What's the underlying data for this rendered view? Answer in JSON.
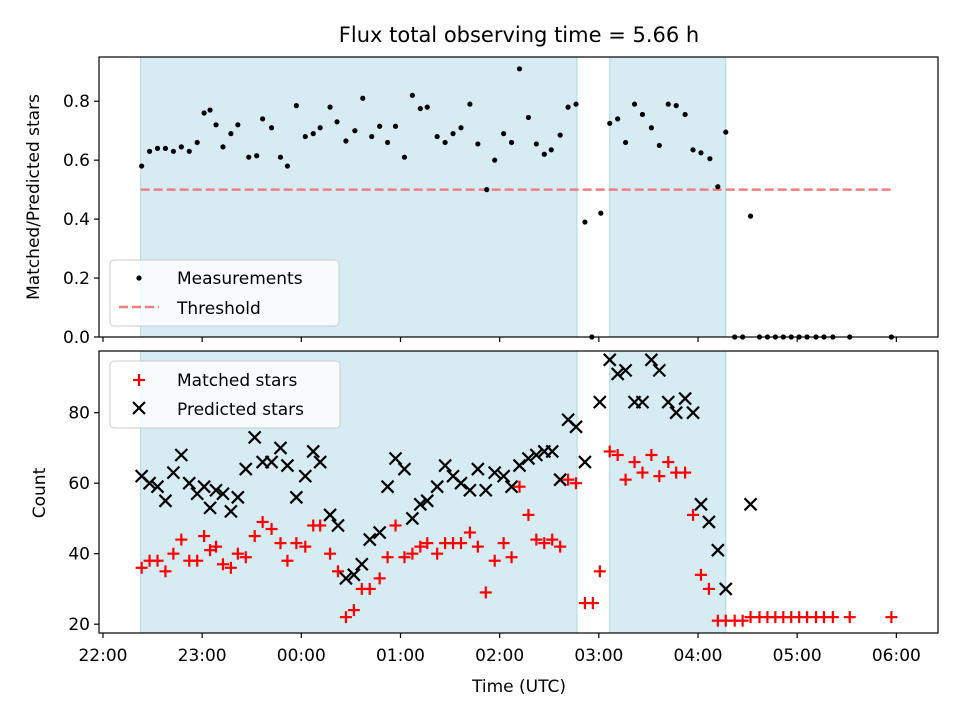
{
  "chart_data": {
    "title": "Flux total observing time = 5.66 h",
    "xlabel": "Time (UTC)",
    "x_unit": "hours since 22:00 UTC",
    "xlim": [
      -0.04,
      8.42
    ],
    "xticks": [
      {
        "x": 0,
        "label": "22:00"
      },
      {
        "x": 1,
        "label": "23:00"
      },
      {
        "x": 2,
        "label": "00:00"
      },
      {
        "x": 3,
        "label": "01:00"
      },
      {
        "x": 4,
        "label": "02:00"
      },
      {
        "x": 5,
        "label": "03:00"
      },
      {
        "x": 6,
        "label": "04:00"
      },
      {
        "x": 7,
        "label": "05:00"
      },
      {
        "x": 8,
        "label": "06:00"
      }
    ],
    "shaded_spans": [
      {
        "x0": 0.38,
        "x1": 4.78,
        "color": "#add8e6"
      },
      {
        "x0": 5.11,
        "x1": 6.28,
        "color": "#add8e6"
      }
    ],
    "top": {
      "type": "scatter",
      "ylabel": "Matched/Predicted stars",
      "ylim": [
        0,
        0.95
      ],
      "yticks": [
        0.0,
        0.2,
        0.4,
        0.6,
        0.8
      ],
      "threshold": {
        "name": "Threshold",
        "y": 0.5,
        "x0": 0.38,
        "x1": 7.95,
        "color": "#f08080"
      },
      "legend": {
        "position": "lower-left",
        "entries": [
          "Measurements",
          "Threshold"
        ]
      },
      "series": [
        {
          "name": "Measurements",
          "color": "#000000",
          "points": [
            [
              0.39,
              0.58
            ],
            [
              0.47,
              0.63
            ],
            [
              0.55,
              0.64
            ],
            [
              0.63,
              0.64
            ],
            [
              0.71,
              0.63
            ],
            [
              0.79,
              0.645
            ],
            [
              0.87,
              0.63
            ],
            [
              0.95,
              0.66
            ],
            [
              1.02,
              0.76
            ],
            [
              1.08,
              0.77
            ],
            [
              1.14,
              0.72
            ],
            [
              1.21,
              0.645
            ],
            [
              1.29,
              0.69
            ],
            [
              1.36,
              0.72
            ],
            [
              1.47,
              0.61
            ],
            [
              1.55,
              0.615
            ],
            [
              1.61,
              0.74
            ],
            [
              1.7,
              0.71
            ],
            [
              1.79,
              0.61
            ],
            [
              1.86,
              0.58
            ],
            [
              1.95,
              0.785
            ],
            [
              2.04,
              0.68
            ],
            [
              2.12,
              0.69
            ],
            [
              2.19,
              0.71
            ],
            [
              2.29,
              0.78
            ],
            [
              2.36,
              0.73
            ],
            [
              2.45,
              0.665
            ],
            [
              2.54,
              0.7
            ],
            [
              2.62,
              0.81
            ],
            [
              2.71,
              0.68
            ],
            [
              2.79,
              0.715
            ],
            [
              2.87,
              0.66
            ],
            [
              2.95,
              0.715
            ],
            [
              3.04,
              0.61
            ],
            [
              3.12,
              0.82
            ],
            [
              3.2,
              0.775
            ],
            [
              3.27,
              0.78
            ],
            [
              3.37,
              0.68
            ],
            [
              3.45,
              0.66
            ],
            [
              3.53,
              0.69
            ],
            [
              3.61,
              0.71
            ],
            [
              3.7,
              0.79
            ],
            [
              3.78,
              0.655
            ],
            [
              3.87,
              0.5
            ],
            [
              3.95,
              0.6
            ],
            [
              4.04,
              0.69
            ],
            [
              4.12,
              0.66
            ],
            [
              4.2,
              0.91
            ],
            [
              4.29,
              0.745
            ],
            [
              4.37,
              0.655
            ],
            [
              4.45,
              0.62
            ],
            [
              4.52,
              0.635
            ],
            [
              4.61,
              0.685
            ],
            [
              4.69,
              0.78
            ],
            [
              4.77,
              0.79
            ],
            [
              4.86,
              0.39
            ],
            [
              4.93,
              0.0
            ],
            [
              5.02,
              0.42
            ],
            [
              5.11,
              0.725
            ],
            [
              5.19,
              0.74
            ],
            [
              5.27,
              0.66
            ],
            [
              5.36,
              0.79
            ],
            [
              5.44,
              0.755
            ],
            [
              5.53,
              0.71
            ],
            [
              5.61,
              0.65
            ],
            [
              5.7,
              0.79
            ],
            [
              5.78,
              0.785
            ],
            [
              5.87,
              0.755
            ],
            [
              5.95,
              0.635
            ],
            [
              6.03,
              0.625
            ],
            [
              6.12,
              0.605
            ],
            [
              6.2,
              0.51
            ],
            [
              6.28,
              0.695
            ],
            [
              6.37,
              0.0
            ],
            [
              6.45,
              0.0
            ],
            [
              6.53,
              0.41
            ],
            [
              6.62,
              0.0
            ],
            [
              6.7,
              0.0
            ],
            [
              6.78,
              0.0
            ],
            [
              6.86,
              0.0
            ],
            [
              6.94,
              0.0
            ],
            [
              7.02,
              0.0
            ],
            [
              7.1,
              0.0
            ],
            [
              7.19,
              0.0
            ],
            [
              7.27,
              0.0
            ],
            [
              7.36,
              0.0
            ],
            [
              7.53,
              0.0
            ],
            [
              7.95,
              0.0
            ]
          ]
        }
      ]
    },
    "bottom": {
      "type": "scatter",
      "ylabel": "Count",
      "ylim": [
        17.5,
        97.5
      ],
      "yticks": [
        20,
        40,
        60,
        80
      ],
      "legend": {
        "position": "upper-left",
        "entries": [
          "Matched stars",
          "Predicted stars"
        ]
      },
      "series": [
        {
          "name": "Matched stars",
          "marker": "plus",
          "color": "#ff0000",
          "points": [
            [
              0.39,
              36
            ],
            [
              0.47,
              38
            ],
            [
              0.55,
              38
            ],
            [
              0.63,
              35
            ],
            [
              0.71,
              40
            ],
            [
              0.79,
              44
            ],
            [
              0.87,
              38
            ],
            [
              0.95,
              38
            ],
            [
              1.02,
              45
            ],
            [
              1.08,
              41
            ],
            [
              1.14,
              42
            ],
            [
              1.21,
              37
            ],
            [
              1.29,
              36
            ],
            [
              1.36,
              40
            ],
            [
              1.44,
              39
            ],
            [
              1.53,
              45
            ],
            [
              1.61,
              49
            ],
            [
              1.7,
              47
            ],
            [
              1.79,
              43
            ],
            [
              1.86,
              38
            ],
            [
              1.95,
              43
            ],
            [
              2.04,
              42
            ],
            [
              2.12,
              48
            ],
            [
              2.19,
              48
            ],
            [
              2.29,
              40
            ],
            [
              2.37,
              35
            ],
            [
              2.45,
              22
            ],
            [
              2.53,
              24
            ],
            [
              2.61,
              30
            ],
            [
              2.69,
              30
            ],
            [
              2.79,
              33
            ],
            [
              2.87,
              39
            ],
            [
              2.95,
              48
            ],
            [
              3.04,
              39
            ],
            [
              3.12,
              40
            ],
            [
              3.2,
              42
            ],
            [
              3.27,
              43
            ],
            [
              3.37,
              40
            ],
            [
              3.45,
              43
            ],
            [
              3.53,
              43
            ],
            [
              3.61,
              43
            ],
            [
              3.7,
              46
            ],
            [
              3.78,
              42
            ],
            [
              3.86,
              29
            ],
            [
              3.95,
              38
            ],
            [
              4.04,
              43
            ],
            [
              4.12,
              39
            ],
            [
              4.2,
              59
            ],
            [
              4.29,
              51
            ],
            [
              4.37,
              44
            ],
            [
              4.45,
              43
            ],
            [
              4.53,
              44
            ],
            [
              4.61,
              42
            ],
            [
              4.69,
              61
            ],
            [
              4.77,
              60
            ],
            [
              4.86,
              26
            ],
            [
              4.94,
              26
            ],
            [
              5.01,
              35
            ],
            [
              5.11,
              69
            ],
            [
              5.19,
              68
            ],
            [
              5.27,
              61
            ],
            [
              5.36,
              66
            ],
            [
              5.44,
              63
            ],
            [
              5.53,
              68
            ],
            [
              5.61,
              62
            ],
            [
              5.7,
              66
            ],
            [
              5.78,
              63
            ],
            [
              5.87,
              63
            ],
            [
              5.95,
              51
            ],
            [
              6.03,
              34
            ],
            [
              6.11,
              30
            ],
            [
              6.2,
              21
            ],
            [
              6.28,
              21
            ],
            [
              6.37,
              21
            ],
            [
              6.45,
              21
            ],
            [
              6.53,
              22
            ],
            [
              6.62,
              22
            ],
            [
              6.7,
              22
            ],
            [
              6.78,
              22
            ],
            [
              6.86,
              22
            ],
            [
              6.94,
              22
            ],
            [
              7.02,
              22
            ],
            [
              7.1,
              22
            ],
            [
              7.19,
              22
            ],
            [
              7.27,
              22
            ],
            [
              7.36,
              22
            ],
            [
              7.53,
              22
            ],
            [
              7.95,
              22
            ]
          ]
        },
        {
          "name": "Predicted stars",
          "marker": "x",
          "color": "#000000",
          "points": [
            [
              0.39,
              62
            ],
            [
              0.47,
              60
            ],
            [
              0.55,
              59
            ],
            [
              0.63,
              55
            ],
            [
              0.71,
              63
            ],
            [
              0.79,
              68
            ],
            [
              0.87,
              60
            ],
            [
              0.95,
              57
            ],
            [
              1.02,
              59
            ],
            [
              1.08,
              53
            ],
            [
              1.14,
              58
            ],
            [
              1.21,
              57
            ],
            [
              1.29,
              52
            ],
            [
              1.36,
              56
            ],
            [
              1.44,
              64
            ],
            [
              1.53,
              73
            ],
            [
              1.61,
              66
            ],
            [
              1.7,
              66
            ],
            [
              1.79,
              70
            ],
            [
              1.86,
              65
            ],
            [
              1.95,
              56
            ],
            [
              2.04,
              62
            ],
            [
              2.12,
              69
            ],
            [
              2.19,
              66
            ],
            [
              2.29,
              51
            ],
            [
              2.37,
              48
            ],
            [
              2.45,
              33
            ],
            [
              2.53,
              34
            ],
            [
              2.61,
              37
            ],
            [
              2.69,
              44
            ],
            [
              2.79,
              46
            ],
            [
              2.87,
              59
            ],
            [
              2.95,
              67
            ],
            [
              3.04,
              64
            ],
            [
              3.12,
              50
            ],
            [
              3.2,
              54
            ],
            [
              3.27,
              55
            ],
            [
              3.37,
              59
            ],
            [
              3.45,
              65
            ],
            [
              3.53,
              62
            ],
            [
              3.61,
              60
            ],
            [
              3.7,
              58
            ],
            [
              3.78,
              64
            ],
            [
              3.86,
              58
            ],
            [
              3.95,
              63
            ],
            [
              4.04,
              62
            ],
            [
              4.12,
              59
            ],
            [
              4.2,
              65
            ],
            [
              4.29,
              67
            ],
            [
              4.37,
              68
            ],
            [
              4.45,
              69
            ],
            [
              4.53,
              69
            ],
            [
              4.61,
              61
            ],
            [
              4.69,
              78
            ],
            [
              4.77,
              76
            ],
            [
              4.86,
              66
            ],
            [
              5.01,
              83
            ],
            [
              5.11,
              95
            ],
            [
              5.19,
              91
            ],
            [
              5.27,
              92
            ],
            [
              5.36,
              83
            ],
            [
              5.44,
              83
            ],
            [
              5.53,
              95
            ],
            [
              5.61,
              92
            ],
            [
              5.7,
              83
            ],
            [
              5.78,
              80
            ],
            [
              5.87,
              84
            ],
            [
              5.95,
              80
            ],
            [
              6.03,
              54
            ],
            [
              6.11,
              49
            ],
            [
              6.2,
              41
            ],
            [
              6.28,
              30
            ],
            [
              6.53,
              54
            ]
          ]
        }
      ]
    }
  }
}
